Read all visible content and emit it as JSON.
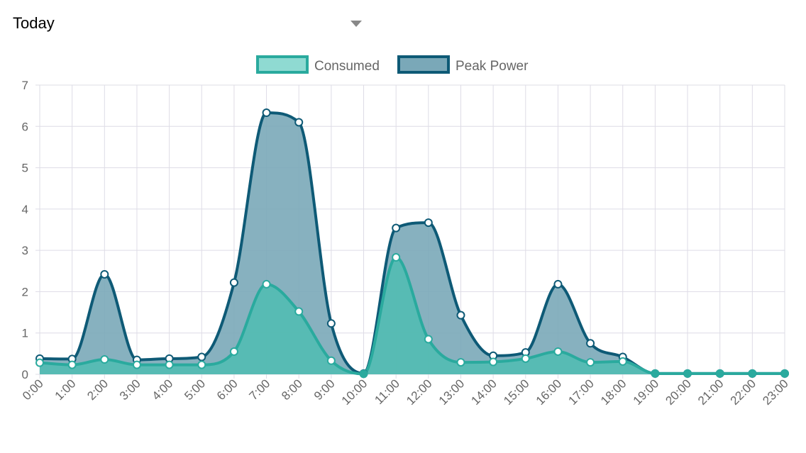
{
  "range_selector": {
    "selected": "Today"
  },
  "chart_data": {
    "type": "area",
    "x": [
      "0:00",
      "1:00",
      "2:00",
      "3:00",
      "4:00",
      "5:00",
      "6:00",
      "7:00",
      "8:00",
      "9:00",
      "10:00",
      "11:00",
      "12:00",
      "13:00",
      "14:00",
      "15:00",
      "16:00",
      "17:00",
      "18:00",
      "19:00",
      "20:00",
      "21:00",
      "22:00",
      "23:00"
    ],
    "series": [
      {
        "name": "Consumed",
        "values": [
          0.28,
          0.23,
          0.36,
          0.23,
          0.23,
          0.23,
          0.55,
          2.18,
          1.52,
          0.33,
          0.01,
          2.83,
          0.85,
          0.29,
          0.3,
          0.38,
          0.55,
          0.29,
          0.31,
          0.02,
          0.02,
          0.02,
          0.02,
          0.02
        ],
        "line_color": "#2aaa9e",
        "fill_color": "#4fbdb1",
        "legend_fill": "#8fdad2"
      },
      {
        "name": "Peak Power",
        "values": [
          0.38,
          0.37,
          2.42,
          0.35,
          0.38,
          0.42,
          2.22,
          6.33,
          6.1,
          1.23,
          0.02,
          3.54,
          3.67,
          1.43,
          0.45,
          0.53,
          2.18,
          0.75,
          0.42,
          0.02,
          0.02,
          0.02,
          0.02,
          0.02
        ],
        "line_color": "#0e5a76",
        "fill_color": "#7aa8b8",
        "legend_fill": "#7aa8b8"
      }
    ],
    "ylim": [
      0,
      7
    ],
    "yticks": [
      0,
      1,
      2,
      3,
      4,
      5,
      6,
      7
    ],
    "grid": true,
    "legend": "top-center"
  }
}
